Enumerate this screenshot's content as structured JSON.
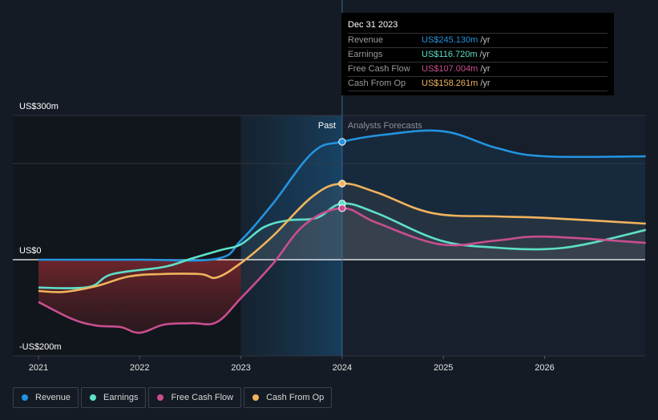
{
  "tooltip": {
    "date": "Dec 31 2023",
    "rows": [
      {
        "name": "Revenue",
        "value": "US$245.130m",
        "unit": "/yr",
        "color": "#2394df"
      },
      {
        "name": "Earnings",
        "value": "US$116.720m",
        "unit": "/yr",
        "color": "#5ee0c8"
      },
      {
        "name": "Free Cash Flow",
        "value": "US$107.004m",
        "unit": "/yr",
        "color": "#c94e8f"
      },
      {
        "name": "Cash From Op",
        "value": "US$158.261m",
        "unit": "/yr",
        "color": "#f0b35c"
      }
    ]
  },
  "legend": [
    {
      "name": "Revenue",
      "color": "#2394df"
    },
    {
      "name": "Earnings",
      "color": "#5ee0c8"
    },
    {
      "name": "Free Cash Flow",
      "color": "#c94e8f"
    },
    {
      "name": "Cash From Op",
      "color": "#f0b35c"
    }
  ],
  "chart_data": {
    "type": "line",
    "title": "",
    "xlabel": "",
    "ylabel": "",
    "xlim": [
      2021.0,
      2027.0
    ],
    "ylim": [
      -200,
      300
    ],
    "y_ticks": [
      {
        "value": 300,
        "label": "US$300m"
      },
      {
        "value": 0,
        "label": "US$0"
      },
      {
        "value": -200,
        "label": "-US$200m"
      }
    ],
    "gridlines_at": [
      300,
      200,
      0,
      -200
    ],
    "x_ticks": [
      {
        "value": 2021,
        "label": "2021"
      },
      {
        "value": 2022,
        "label": "2022"
      },
      {
        "value": 2023,
        "label": "2023"
      },
      {
        "value": 2024,
        "label": "2024"
      },
      {
        "value": 2025,
        "label": "2025"
      },
      {
        "value": 2026,
        "label": "2026"
      }
    ],
    "divider": {
      "x": 2024.0,
      "past_label": "Past",
      "forecast_label": "Analysts Forecasts",
      "highlight_start": 2023.0
    },
    "legend_position": "bottom-left",
    "series": [
      {
        "name": "Revenue",
        "color": "#2394df",
        "points": [
          [
            2021.0,
            0
          ],
          [
            2022.0,
            0
          ],
          [
            2022.76,
            2
          ],
          [
            2023.0,
            40
          ],
          [
            2023.31,
            115
          ],
          [
            2023.71,
            223
          ],
          [
            2024.0,
            245.13
          ],
          [
            2024.42,
            260
          ],
          [
            2025.0,
            267
          ],
          [
            2025.53,
            232
          ],
          [
            2026.0,
            215
          ],
          [
            2027.0,
            215
          ]
        ]
      },
      {
        "name": "Earnings",
        "color": "#5ee0c8",
        "points": [
          [
            2021.0,
            -58
          ],
          [
            2021.49,
            -57
          ],
          [
            2021.73,
            -30
          ],
          [
            2022.24,
            -15
          ],
          [
            2022.52,
            3
          ],
          [
            2022.8,
            20
          ],
          [
            2023.0,
            32
          ],
          [
            2023.23,
            68
          ],
          [
            2023.47,
            82
          ],
          [
            2023.75,
            87
          ],
          [
            2024.0,
            116.72
          ],
          [
            2024.34,
            97
          ],
          [
            2024.97,
            40
          ],
          [
            2025.53,
            25
          ],
          [
            2026.0,
            22
          ],
          [
            2026.4,
            32
          ],
          [
            2027.0,
            62
          ]
        ]
      },
      {
        "name": "Free Cash Flow",
        "color": "#c94e8f",
        "points": [
          [
            2021.0,
            -88
          ],
          [
            2021.33,
            -123
          ],
          [
            2021.57,
            -137
          ],
          [
            2021.81,
            -140
          ],
          [
            2022.0,
            -152
          ],
          [
            2022.24,
            -135
          ],
          [
            2022.52,
            -132
          ],
          [
            2022.76,
            -130
          ],
          [
            2023.0,
            -80
          ],
          [
            2023.31,
            -10
          ],
          [
            2023.63,
            73
          ],
          [
            2024.0,
            107.0
          ],
          [
            2024.34,
            77
          ],
          [
            2024.97,
            32
          ],
          [
            2025.53,
            40
          ],
          [
            2026.0,
            48
          ],
          [
            2027.0,
            35
          ]
        ]
      },
      {
        "name": "Cash From Op",
        "color": "#f0b35c",
        "points": [
          [
            2021.0,
            -65
          ],
          [
            2021.25,
            -67
          ],
          [
            2021.57,
            -55
          ],
          [
            2021.89,
            -35
          ],
          [
            2022.2,
            -30
          ],
          [
            2022.6,
            -30
          ],
          [
            2022.76,
            -37
          ],
          [
            2023.0,
            -7
          ],
          [
            2023.31,
            48
          ],
          [
            2023.71,
            132
          ],
          [
            2024.0,
            158.26
          ],
          [
            2024.34,
            140
          ],
          [
            2024.89,
            97
          ],
          [
            2025.53,
            90
          ],
          [
            2026.0,
            87
          ],
          [
            2027.0,
            75
          ]
        ]
      }
    ]
  }
}
